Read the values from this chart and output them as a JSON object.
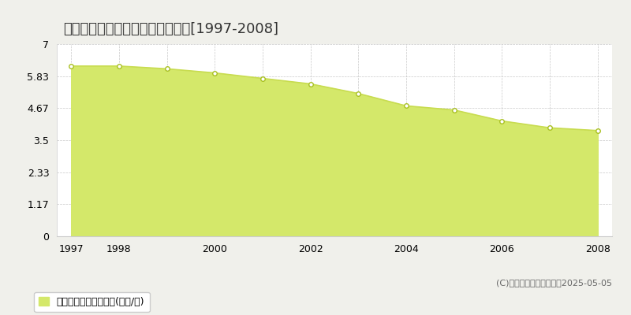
{
  "title": "伊達郡桑折町成田　基準地価推移[1997-2008]",
  "years": [
    1997,
    1998,
    1999,
    2000,
    2001,
    2002,
    2003,
    2004,
    2005,
    2006,
    2007,
    2008
  ],
  "values": [
    6.2,
    6.2,
    6.1,
    5.95,
    5.75,
    5.55,
    5.2,
    4.75,
    4.6,
    4.2,
    3.95,
    3.85
  ],
  "yticks": [
    0,
    1.17,
    2.33,
    3.5,
    4.67,
    5.83,
    7
  ],
  "ylim": [
    0,
    7
  ],
  "xlim_min": 1996.7,
  "xlim_max": 2008.3,
  "xticks": [
    1997,
    1998,
    1999,
    2000,
    2001,
    2002,
    2003,
    2004,
    2005,
    2006,
    2007,
    2008
  ],
  "xtick_labels": [
    "1997",
    "1998",
    "",
    "2000",
    "",
    "2002",
    "",
    "2004",
    "",
    "2006",
    "",
    "2008"
  ],
  "line_color": "#c8dc50",
  "fill_color": "#d4e86a",
  "marker_facecolor": "#ffffff",
  "marker_edgecolor": "#a8c020",
  "grid_color": "#bbbbbb",
  "bg_color": "#f0f0eb",
  "plot_bg_color": "#ffffff",
  "legend_label": "基準地価　平均坪単価(万円/坪)",
  "copyright": "(C)土地価格ドットコム　2025-05-05",
  "title_fontsize": 13,
  "tick_fontsize": 9,
  "legend_fontsize": 9,
  "copyright_fontsize": 8
}
